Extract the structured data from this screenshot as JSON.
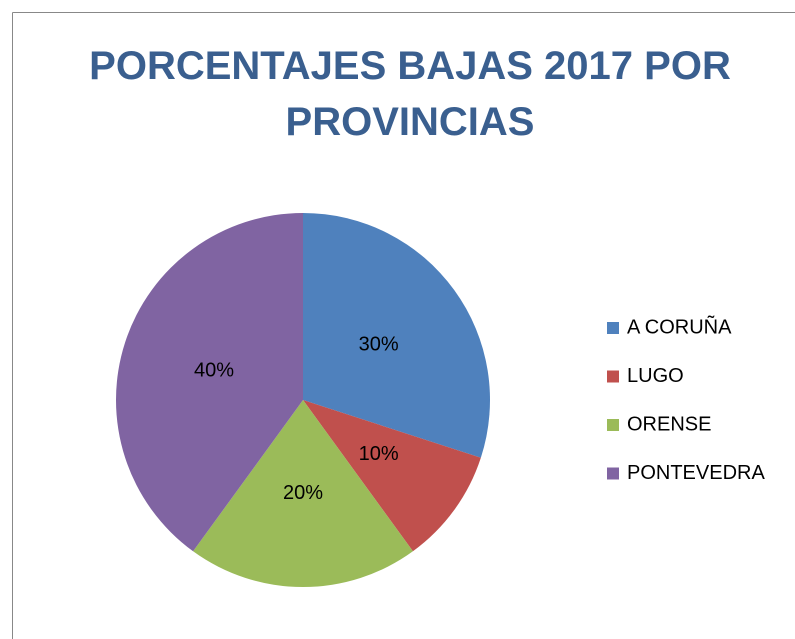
{
  "chart_data": {
    "type": "pie",
    "title": "PORCENTAJES BAJAS 2017 POR PROVINCIAS",
    "categories": [
      "A CORUÑA",
      "LUGO",
      "ORENSE",
      "PONTEVEDRA"
    ],
    "values": [
      30,
      10,
      20,
      40
    ],
    "value_labels": [
      "30%",
      "10%",
      "20%",
      "40%"
    ],
    "colors": [
      "#4f81bd",
      "#c0504d",
      "#9bbb59",
      "#8064a2"
    ],
    "legend": "right"
  }
}
